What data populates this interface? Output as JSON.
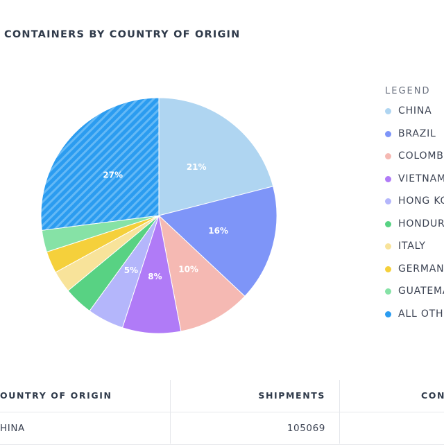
{
  "title": "CONTAINERS BY COUNTRY OF ORIGIN",
  "legend_title": "LEGEND",
  "chart_data": {
    "type": "pie",
    "title": "CONTAINERS BY COUNTRY OF ORIGIN",
    "legend_placement": "right",
    "slices": [
      {
        "label": "CHINA",
        "value": 21,
        "display": "21%",
        "color": "#afd5f1"
      },
      {
        "label": "BRAZIL",
        "value": 16,
        "display": "16%",
        "color": "#7e95f8"
      },
      {
        "label": "COLOMB",
        "value": 10,
        "display": "10%",
        "color": "#f5b9b3"
      },
      {
        "label": "VIETNAM",
        "value": 8,
        "display": "8%",
        "color": "#b07bf7"
      },
      {
        "label": "HONG KO",
        "value": 5,
        "display": "5%",
        "color": "#b4b6fb"
      },
      {
        "label": "HONDUR",
        "value": 4,
        "display": "",
        "color": "#58d283"
      },
      {
        "label": "ITALY",
        "value": 3,
        "display": "",
        "color": "#f8e39a"
      },
      {
        "label": "GERMAN",
        "value": 3,
        "display": "",
        "color": "#f5d03b"
      },
      {
        "label": "GUATEMA",
        "value": 3,
        "display": "",
        "color": "#86e2a6"
      },
      {
        "label": "ALL OTH",
        "value": 27,
        "display": "27%",
        "color": "#2b9cf0",
        "pattern": "stripes"
      }
    ]
  },
  "table": {
    "headers": [
      "OUNTRY OF ORIGIN",
      "SHIPMENTS",
      "CON"
    ],
    "rows": [
      [
        "HINA",
        "105069",
        ""
      ]
    ]
  }
}
